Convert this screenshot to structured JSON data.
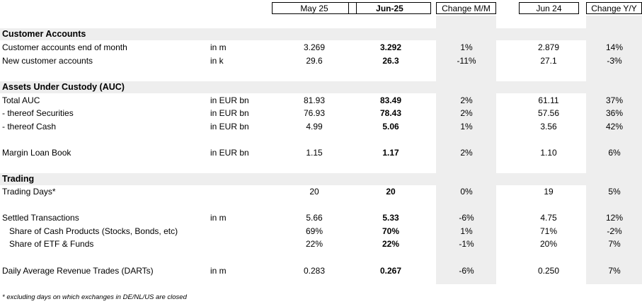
{
  "headers": [
    "May 25",
    "Jun-25",
    "Change M/M",
    "Jun 24",
    "Change Y/Y"
  ],
  "sections": [
    {
      "title": "Customer Accounts",
      "rows": [
        {
          "label": "Customer accounts end of month",
          "unit": "in m",
          "may25": "3.269",
          "jun25": "3.292",
          "mm": "1%",
          "jun24": "2.879",
          "yy": "14%"
        },
        {
          "label": "New customer accounts",
          "unit": "in k",
          "may25": "29.6",
          "jun25": "26.3",
          "mm": "-11%",
          "jun24": "27.1",
          "yy": "-3%"
        }
      ]
    },
    {
      "title": "Assets Under Custody (AUC)",
      "rows": [
        {
          "label": "Total AUC",
          "unit": "in EUR bn",
          "may25": "81.93",
          "jun25": "83.49",
          "mm": "2%",
          "jun24": "61.11",
          "yy": "37%"
        },
        {
          "label": "- thereof Securities",
          "unit": "in EUR bn",
          "may25": "76.93",
          "jun25": "78.43",
          "mm": "2%",
          "jun24": "57.56",
          "yy": "36%"
        },
        {
          "label": "- thereof Cash",
          "unit": "in EUR bn",
          "may25": "4.99",
          "jun25": "5.06",
          "mm": "1%",
          "jun24": "3.56",
          "yy": "42%"
        },
        {
          "label": "Margin Loan Book",
          "unit": "in EUR bn",
          "may25": "1.15",
          "jun25": "1.17",
          "mm": "2%",
          "jun24": "1.10",
          "yy": "6%"
        }
      ]
    },
    {
      "title": "Trading",
      "rows": [
        {
          "label": "Trading Days*",
          "unit": "",
          "may25": "20",
          "jun25": "20",
          "mm": "0%",
          "jun24": "19",
          "yy": "5%"
        },
        {
          "label": "Settled Transactions",
          "unit": "in m",
          "may25": "5.66",
          "jun25": "5.33",
          "mm": "-6%",
          "jun24": "4.75",
          "yy": "12%"
        },
        {
          "label": "Share of Cash Products (Stocks, Bonds, etc)",
          "unit": "",
          "may25": "69%",
          "jun25": "70%",
          "mm": "1%",
          "jun24": "71%",
          "yy": "-2%"
        },
        {
          "label": "Share of ETF & Funds",
          "unit": "",
          "may25": "22%",
          "jun25": "22%",
          "mm": "-1%",
          "jun24": "20%",
          "yy": "7%"
        },
        {
          "label": "Daily Average Revenue Trades (DARTs)",
          "unit": "in m",
          "may25": "0.283",
          "jun25": "0.267",
          "mm": "-6%",
          "jun24": "0.250",
          "yy": "7%"
        }
      ]
    }
  ],
  "footnote": "* excluding days on which exchanges in DE/NL/US are closed"
}
